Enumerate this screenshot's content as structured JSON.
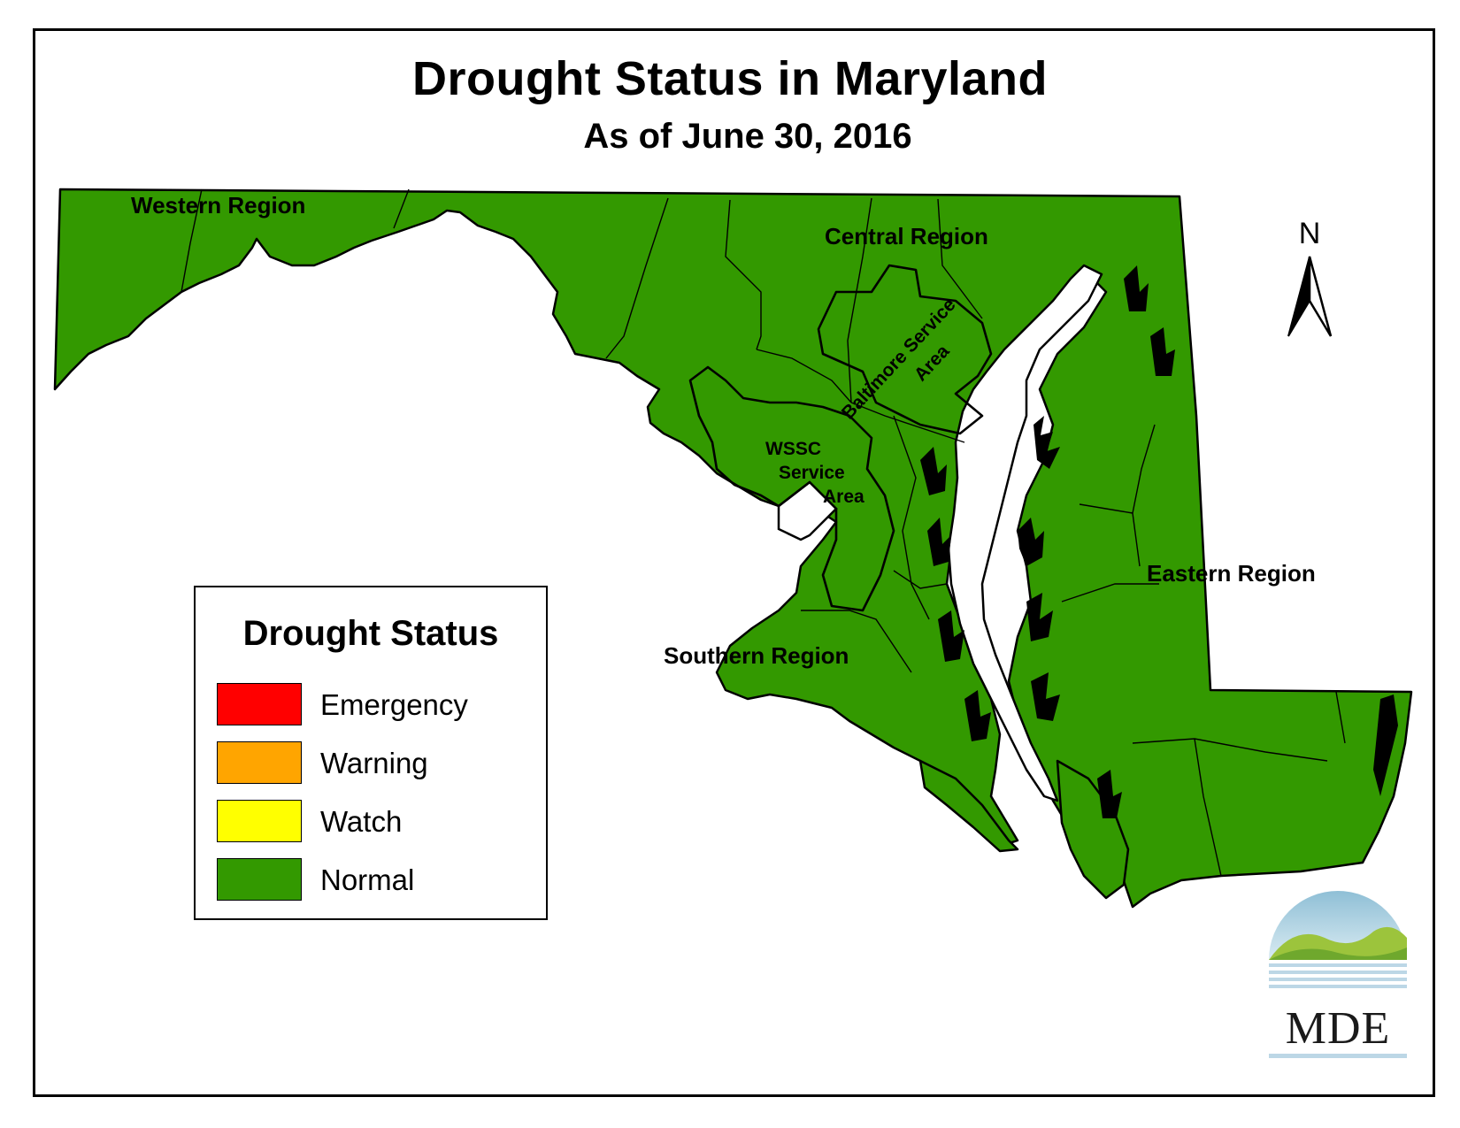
{
  "map": {
    "title": "Drought Status in Maryland",
    "subtitle": "As of June 30, 2016",
    "regions": [
      {
        "name": "Western Region",
        "status": "Normal"
      },
      {
        "name": "Central Region",
        "status": "Normal"
      },
      {
        "name": "Baltimore Service Area",
        "status": "Normal"
      },
      {
        "name": "WSSC Service Area",
        "status": "Normal"
      },
      {
        "name": "Southern Region",
        "status": "Normal"
      },
      {
        "name": "Eastern Region",
        "status": "Normal"
      }
    ],
    "labels": {
      "western": "Western Region",
      "central": "Central Region",
      "baltimore": "Baltimore Service Area",
      "baltimore_line1": "Baltimore Service",
      "baltimore_line2": "Area",
      "wssc_line1": "WSSC",
      "wssc_line2": "Service",
      "wssc_line3": "Area",
      "southern": "Southern Region",
      "eastern": "Eastern Region"
    },
    "north_arrow": {
      "label": "N",
      "icon": "north-arrow-icon"
    }
  },
  "legend": {
    "title": "Drought Status",
    "items": [
      {
        "label": "Emergency",
        "color": "#ff0000"
      },
      {
        "label": "Warning",
        "color": "#ffa500"
      },
      {
        "label": "Watch",
        "color": "#ffff00"
      },
      {
        "label": "Normal",
        "color": "#339900"
      }
    ]
  },
  "logo": {
    "text": "MDE",
    "icon": "mde-logo-icon"
  },
  "colors": {
    "land": "#339900",
    "border": "#000000",
    "water": "#ffffff"
  }
}
